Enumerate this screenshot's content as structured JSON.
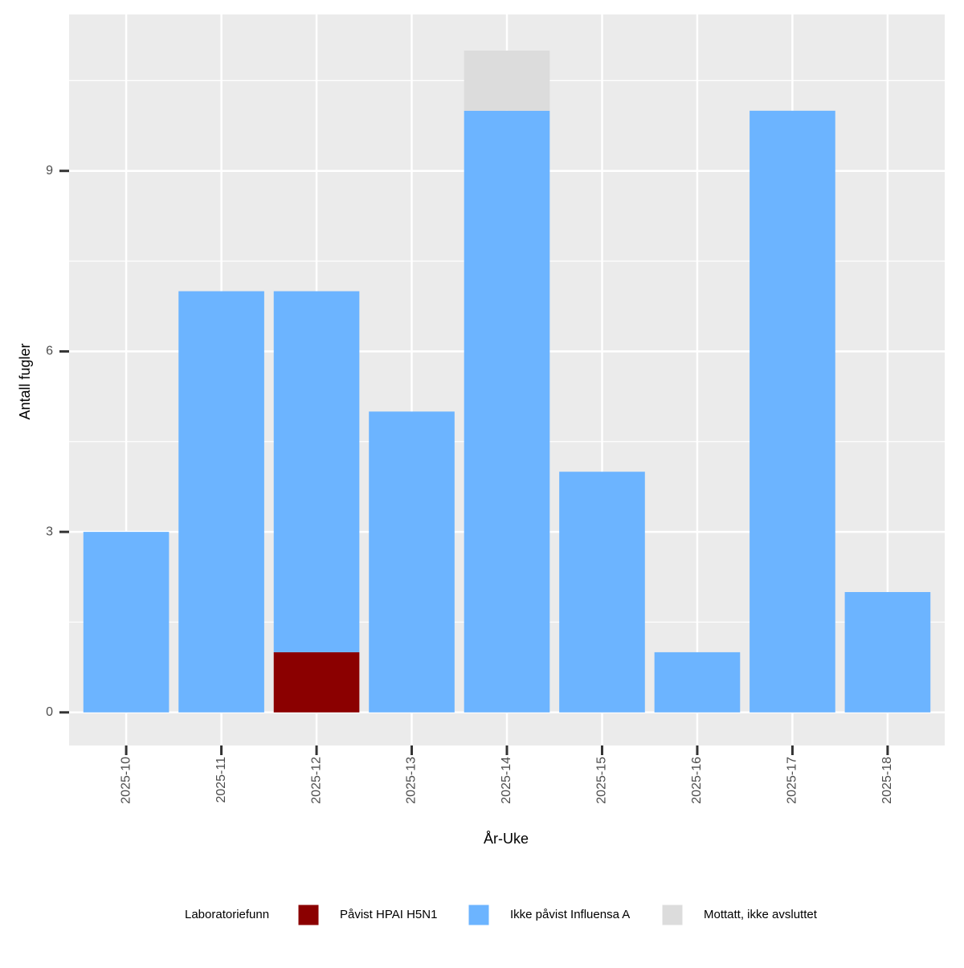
{
  "chart_data": {
    "type": "stacked_bar",
    "x_label": "År-Uke",
    "y_label": "Antall fugler",
    "categories": [
      "2025-10",
      "2025-11",
      "2025-12",
      "2025-13",
      "2025-14",
      "2025-15",
      "2025-16",
      "2025-17",
      "2025-18"
    ],
    "series": [
      {
        "name": "Påvist HPAI H5N1",
        "color": "#8b0000",
        "values": [
          0,
          0,
          1,
          0,
          0,
          0,
          0,
          0,
          0
        ]
      },
      {
        "name": "Ikke påvist Influensa A",
        "color": "#6cb4ff",
        "values": [
          3,
          7,
          6,
          5,
          10,
          4,
          1,
          10,
          2
        ]
      },
      {
        "name": "Mottatt, ikke avsluttet",
        "color": "#dcdcdc",
        "values": [
          0,
          0,
          0,
          0,
          1,
          0,
          0,
          0,
          0
        ]
      }
    ],
    "legend_title": "Laboratoriefunn",
    "legend_position": "bottom",
    "ylim": [
      -0.55,
      11.6
    ],
    "yticks": [
      0,
      3,
      6,
      9
    ],
    "y_minor_ticks": [
      1.5,
      4.5,
      7.5,
      10.5
    ],
    "grid": true
  }
}
